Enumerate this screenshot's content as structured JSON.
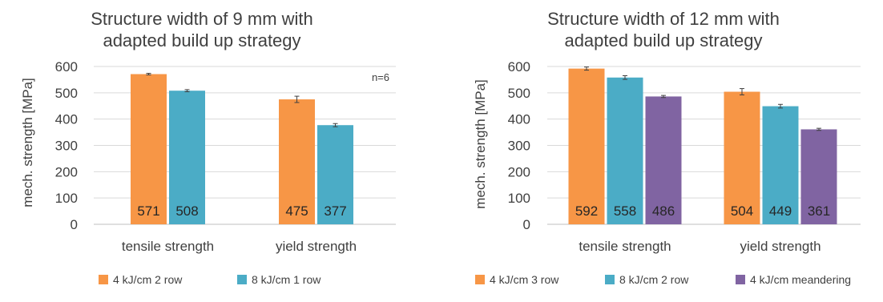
{
  "chart_data": [
    {
      "type": "bar",
      "title_lines": [
        "Structure width of 9 mm with",
        "adapted build up strategy"
      ],
      "ylabel": "mech. strength [MPa]",
      "xlabel": "",
      "ylim": [
        0,
        600
      ],
      "yticks": [
        0,
        100,
        200,
        300,
        400,
        500,
        600
      ],
      "grid": true,
      "legend": "bottom",
      "annotation": "n=6",
      "categories": [
        "tensile strength",
        "yield strength"
      ],
      "series": [
        {
          "name": "4 kJ/cm 2 row",
          "color": "#F79646",
          "values": [
            571,
            475
          ],
          "labels": [
            "571",
            "475"
          ],
          "errors": [
            3,
            12
          ]
        },
        {
          "name": "8 kJ/cm 1 row",
          "color": "#4BACC6",
          "values": [
            508,
            377
          ],
          "labels": [
            "508",
            "377"
          ],
          "errors": [
            4,
            6
          ]
        }
      ]
    },
    {
      "type": "bar",
      "title_lines": [
        "Structure width of 12 mm with",
        "adapted build up strategy"
      ],
      "ylabel": "mech. strength [MPa]",
      "xlabel": "",
      "ylim": [
        0,
        600
      ],
      "yticks": [
        0,
        100,
        200,
        300,
        400,
        500,
        600
      ],
      "grid": true,
      "legend": "bottom",
      "annotation": "",
      "categories": [
        "tensile strength",
        "yield strength"
      ],
      "series": [
        {
          "name": "4 kJ/cm 3 row",
          "color": "#F79646",
          "values": [
            592,
            504
          ],
          "labels": [
            "592",
            "504"
          ],
          "errors": [
            6,
            12
          ]
        },
        {
          "name": "8 kJ/cm 2 row",
          "color": "#4BACC6",
          "values": [
            558,
            449
          ],
          "labels": [
            "558",
            "449"
          ],
          "errors": [
            7,
            7
          ]
        },
        {
          "name": "4 kJ/cm meandering",
          "color": "#8064A2",
          "values": [
            486,
            361
          ],
          "labels": [
            "486",
            "361"
          ],
          "errors": [
            4,
            4
          ]
        }
      ]
    }
  ]
}
